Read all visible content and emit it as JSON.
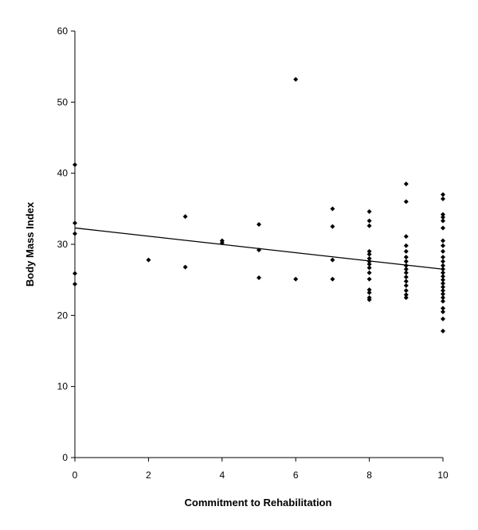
{
  "chart_data": {
    "type": "scatter",
    "title": "",
    "xlabel": "Commitment to Rehabilitation",
    "ylabel": "Body Mass Index",
    "xlim": [
      0,
      10
    ],
    "ylim": [
      0,
      60
    ],
    "xticks": [
      0,
      2,
      4,
      6,
      8,
      10
    ],
    "yticks": [
      0,
      10,
      20,
      30,
      40,
      50,
      60
    ],
    "grid": false,
    "legend": "none",
    "marker_color": "#000000",
    "trendline": {
      "x": [
        0,
        10
      ],
      "y": [
        32.3,
        26.5
      ]
    },
    "points": [
      {
        "x": 0,
        "y": 41.2
      },
      {
        "x": 0,
        "y": 33.0
      },
      {
        "x": 0,
        "y": 31.5
      },
      {
        "x": 0,
        "y": 25.9
      },
      {
        "x": 0,
        "y": 24.4
      },
      {
        "x": 2,
        "y": 27.8
      },
      {
        "x": 3,
        "y": 33.9
      },
      {
        "x": 3,
        "y": 26.8
      },
      {
        "x": 4,
        "y": 30.5
      },
      {
        "x": 4,
        "y": 30.2
      },
      {
        "x": 5,
        "y": 32.8
      },
      {
        "x": 5,
        "y": 29.2
      },
      {
        "x": 5,
        "y": 25.3
      },
      {
        "x": 6,
        "y": 53.2
      },
      {
        "x": 6,
        "y": 25.1
      },
      {
        "x": 7,
        "y": 35.0
      },
      {
        "x": 7,
        "y": 32.5
      },
      {
        "x": 7,
        "y": 27.8
      },
      {
        "x": 7,
        "y": 25.1
      },
      {
        "x": 8,
        "y": 34.6
      },
      {
        "x": 8,
        "y": 33.3
      },
      {
        "x": 8,
        "y": 32.6
      },
      {
        "x": 8,
        "y": 29.0
      },
      {
        "x": 8,
        "y": 28.6
      },
      {
        "x": 8,
        "y": 28.0
      },
      {
        "x": 8,
        "y": 27.6
      },
      {
        "x": 8,
        "y": 27.2
      },
      {
        "x": 8,
        "y": 26.7
      },
      {
        "x": 8,
        "y": 26.0
      },
      {
        "x": 8,
        "y": 25.1
      },
      {
        "x": 8,
        "y": 23.6
      },
      {
        "x": 8,
        "y": 23.2
      },
      {
        "x": 8,
        "y": 22.5
      },
      {
        "x": 8,
        "y": 22.2
      },
      {
        "x": 9,
        "y": 38.5
      },
      {
        "x": 9,
        "y": 36.0
      },
      {
        "x": 9,
        "y": 31.1
      },
      {
        "x": 9,
        "y": 29.8
      },
      {
        "x": 9,
        "y": 29.0
      },
      {
        "x": 9,
        "y": 28.2
      },
      {
        "x": 9,
        "y": 27.6
      },
      {
        "x": 9,
        "y": 27.0
      },
      {
        "x": 9,
        "y": 26.5
      },
      {
        "x": 9,
        "y": 26.0
      },
      {
        "x": 9,
        "y": 25.4
      },
      {
        "x": 9,
        "y": 24.8
      },
      {
        "x": 9,
        "y": 24.2
      },
      {
        "x": 9,
        "y": 23.5
      },
      {
        "x": 9,
        "y": 22.9
      },
      {
        "x": 9,
        "y": 22.5
      },
      {
        "x": 10,
        "y": 37.0
      },
      {
        "x": 10,
        "y": 36.4
      },
      {
        "x": 10,
        "y": 34.2
      },
      {
        "x": 10,
        "y": 33.8
      },
      {
        "x": 10,
        "y": 33.3
      },
      {
        "x": 10,
        "y": 32.3
      },
      {
        "x": 10,
        "y": 30.5
      },
      {
        "x": 10,
        "y": 29.8
      },
      {
        "x": 10,
        "y": 29.0
      },
      {
        "x": 10,
        "y": 28.2
      },
      {
        "x": 10,
        "y": 27.6
      },
      {
        "x": 10,
        "y": 27.0
      },
      {
        "x": 10,
        "y": 26.5
      },
      {
        "x": 10,
        "y": 26.0
      },
      {
        "x": 10,
        "y": 25.5
      },
      {
        "x": 10,
        "y": 25.0
      },
      {
        "x": 10,
        "y": 24.5
      },
      {
        "x": 10,
        "y": 24.0
      },
      {
        "x": 10,
        "y": 23.5
      },
      {
        "x": 10,
        "y": 23.0
      },
      {
        "x": 10,
        "y": 22.5
      },
      {
        "x": 10,
        "y": 22.0
      },
      {
        "x": 10,
        "y": 21.0
      },
      {
        "x": 10,
        "y": 20.5
      },
      {
        "x": 10,
        "y": 19.5
      },
      {
        "x": 10,
        "y": 17.8
      }
    ]
  }
}
